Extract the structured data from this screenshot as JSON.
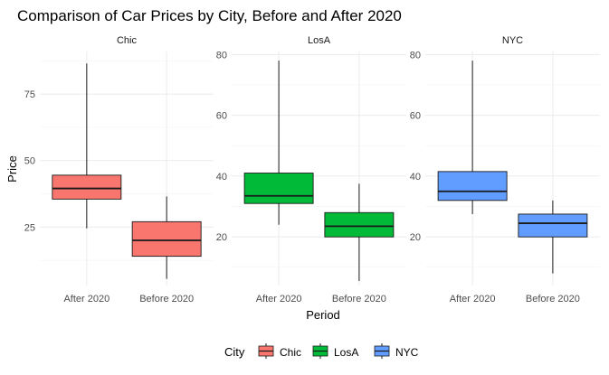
{
  "chart_data": {
    "type": "boxplot",
    "title": "Comparison of Car Prices by City, Before and After 2020",
    "xlabel": "Period",
    "ylabel": "Price",
    "categories": [
      "After 2020",
      "Before 2020"
    ],
    "legend": {
      "title": "City",
      "position": "bottom",
      "entries": [
        "Chic",
        "LosA",
        "NYC"
      ]
    },
    "grid": true,
    "scales": "free_y",
    "panels": [
      {
        "name": "Chic",
        "color": "#F8766D",
        "ylim": [
          3,
          91
        ],
        "yticks": [
          25,
          50,
          75
        ],
        "minor_ticks": [
          12.5,
          37.5,
          62.5,
          87.5
        ],
        "boxes": [
          {
            "category": "After 2020",
            "min": 24.5,
            "q1": 35.5,
            "median": 39.5,
            "q3": 44.5,
            "max": 86.5
          },
          {
            "category": "Before 2020",
            "min": 5.5,
            "q1": 14,
            "median": 20,
            "q3": 27,
            "max": 36.5
          }
        ]
      },
      {
        "name": "LosA",
        "color": "#00BA38",
        "ylim": [
          4,
          81
        ],
        "yticks": [
          20,
          40,
          60,
          80
        ],
        "minor_ticks": [
          10,
          30,
          50,
          70
        ],
        "boxes": [
          {
            "category": "After 2020",
            "min": 24,
            "q1": 31,
            "median": 33.5,
            "q3": 41,
            "max": 78
          },
          {
            "category": "Before 2020",
            "min": 5.5,
            "q1": 20,
            "median": 23.5,
            "q3": 28,
            "max": 37.5
          }
        ]
      },
      {
        "name": "NYC",
        "color": "#619CFF",
        "ylim": [
          4,
          81
        ],
        "yticks": [
          20,
          40,
          60,
          80
        ],
        "minor_ticks": [
          10,
          30,
          50,
          70
        ],
        "boxes": [
          {
            "category": "After 2020",
            "min": 27.5,
            "q1": 32,
            "median": 35,
            "q3": 41.5,
            "max": 78
          },
          {
            "category": "Before 2020",
            "min": 8,
            "q1": 20,
            "median": 24.5,
            "q3": 27.5,
            "max": 32
          }
        ]
      }
    ]
  }
}
